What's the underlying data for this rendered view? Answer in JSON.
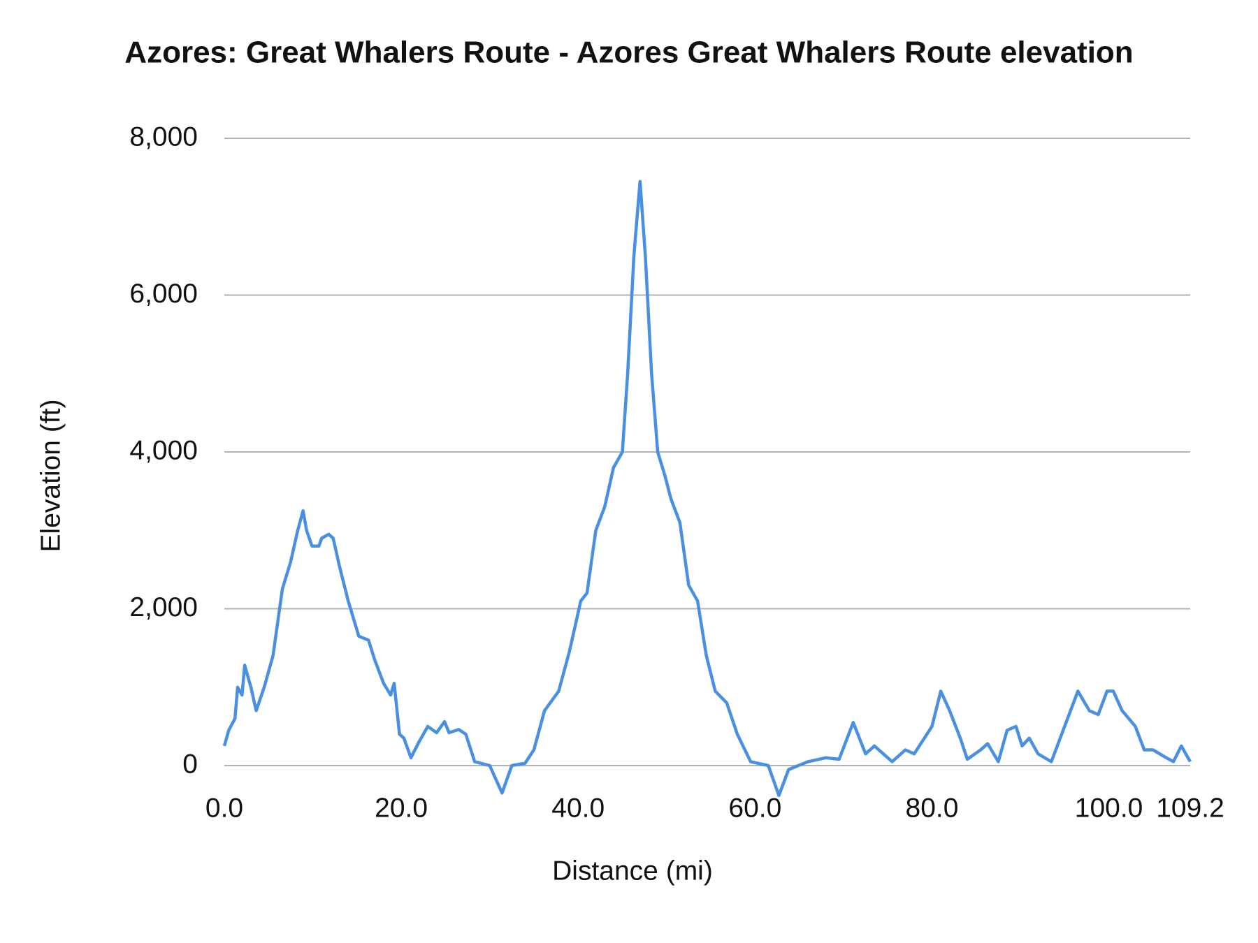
{
  "chart_data": {
    "type": "line",
    "title": "Azores: Great Whalers Route - Azores Great Whalers Route elevation",
    "x_label": "Distance (mi)",
    "y_label": "Elevation (ft)",
    "xlim": [
      0,
      109.2
    ],
    "xticks": [
      {
        "value": 0,
        "label": "0.0"
      },
      {
        "value": 20,
        "label": "20.0"
      },
      {
        "value": 40,
        "label": "40.0"
      },
      {
        "value": 60,
        "label": "60.0"
      },
      {
        "value": 80,
        "label": "80.0"
      },
      {
        "value": 100,
        "label": "100.0"
      },
      {
        "value": 109.2,
        "label": "109.2"
      }
    ],
    "ylim": [
      0,
      8000
    ],
    "yticks": [
      0,
      {
        "value": 2000,
        "label": "2,000"
      },
      {
        "value": 4000,
        "label": "4,000"
      },
      {
        "value": 6000,
        "label": "6,000"
      },
      {
        "value": 8000,
        "label": "8,000"
      }
    ],
    "grid": true,
    "series": [
      {
        "color": "#4a90e2",
        "x": [
          0,
          0.5,
          1.2,
          1.5,
          2,
          2.3,
          3,
          3.6,
          4.5,
          5.5,
          6.56,
          7.5,
          8.3,
          8.9,
          9.3,
          9.9,
          10.7,
          11,
          11.8,
          12.3,
          13,
          14,
          15.2,
          16.3,
          17,
          18,
          18.8,
          19.2,
          19.8,
          20.3,
          21.1,
          22,
          23,
          24,
          24.9,
          25.4,
          26.5,
          27.3,
          28.3,
          30,
          31.4,
          32.5,
          34,
          35,
          36.2,
          37.8,
          39,
          40.3,
          41,
          42,
          43,
          44,
          45,
          45.6,
          46.3,
          47,
          47.6,
          48.3,
          49,
          49.8,
          50.5,
          51.5,
          52.5,
          53.5,
          54.5,
          55.5,
          56.8,
          58,
          59.5,
          61.5,
          62.7,
          63.8,
          66,
          68,
          69.5,
          71.1,
          72.5,
          73.5,
          75.5,
          77,
          78,
          80,
          81,
          82,
          83.2,
          84,
          85.5,
          86.3,
          87.5,
          88.5,
          89.5,
          90.2,
          91,
          92,
          93.5,
          95,
          96.5,
          97.8,
          98.8,
          99.8,
          100.5,
          101.5,
          103,
          104,
          105,
          106.5,
          107.3,
          108.2,
          109.2
        ],
        "values": [
          250,
          450,
          600,
          1000,
          900,
          1280,
          1000,
          700,
          1000,
          1400,
          2250,
          2600,
          3000,
          3250,
          3000,
          2800,
          2800,
          2900,
          2950,
          2900,
          2550,
          2100,
          1650,
          1600,
          1350,
          1050,
          900,
          1050,
          400,
          350,
          100,
          300,
          500,
          420,
          560,
          420,
          460,
          400,
          50,
          0,
          -350,
          0,
          30,
          200,
          700,
          950,
          1450,
          2100,
          2200,
          3000,
          3300,
          3800,
          4000,
          5000,
          6500,
          7450,
          6500,
          5000,
          4000,
          3700,
          3400,
          3100,
          2300,
          2100,
          1400,
          950,
          800,
          400,
          50,
          0,
          -380,
          -50,
          50,
          100,
          80,
          550,
          150,
          250,
          50,
          200,
          150,
          500,
          950,
          700,
          350,
          80,
          200,
          280,
          50,
          450,
          500,
          250,
          350,
          150,
          50,
          500,
          950,
          700,
          650,
          950,
          950,
          700,
          500,
          200,
          200,
          100,
          50,
          250,
          50
        ]
      }
    ]
  }
}
